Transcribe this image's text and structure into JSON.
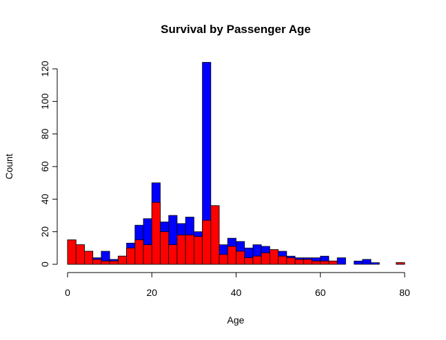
{
  "chart_data": {
    "type": "bar",
    "title": "Survival by Passenger Age",
    "xlabel": "Age",
    "ylabel": "Count",
    "xlim": [
      0,
      80
    ],
    "ylim": [
      0,
      120
    ],
    "x_ticks": [
      0,
      20,
      40,
      60,
      80
    ],
    "y_ticks": [
      0,
      20,
      40,
      60,
      80,
      100,
      120
    ],
    "grid": false,
    "legend": "none",
    "bin_width": 2,
    "bins_start": [
      0,
      2,
      4,
      6,
      8,
      10,
      12,
      14,
      16,
      18,
      20,
      22,
      24,
      26,
      28,
      30,
      32,
      34,
      36,
      38,
      40,
      42,
      44,
      46,
      48,
      50,
      52,
      54,
      56,
      58,
      60,
      62,
      64,
      66,
      68,
      70,
      72,
      74,
      76,
      78
    ],
    "series": [
      {
        "color": "#0000FF",
        "values": [
          15,
          12,
          8,
          4,
          8,
          3,
          5,
          13,
          24,
          28,
          50,
          26,
          30,
          25,
          29,
          20,
          124,
          36,
          12,
          16,
          14,
          10,
          12,
          11,
          9,
          8,
          5,
          4,
          4,
          4,
          5,
          2,
          4,
          0,
          2,
          3,
          1,
          0,
          0,
          1
        ]
      },
      {
        "color": "#FF0000",
        "values": [
          15,
          12,
          8,
          3,
          2,
          2,
          5,
          10,
          15,
          12,
          38,
          20,
          12,
          18,
          18,
          17,
          27,
          36,
          6,
          11,
          8,
          4,
          5,
          7,
          9,
          5,
          4,
          3,
          3,
          2,
          2,
          2,
          0,
          0,
          0,
          0,
          0,
          0,
          0,
          1
        ]
      }
    ]
  }
}
